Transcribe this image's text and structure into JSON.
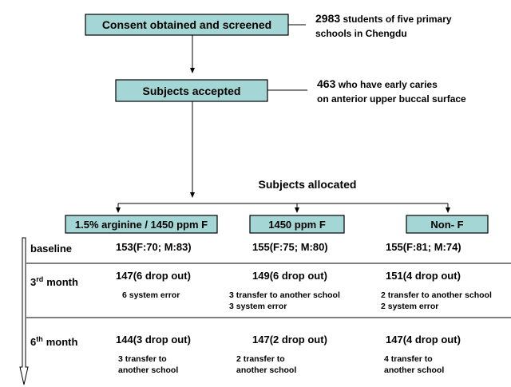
{
  "nodes": [
    {
      "label": "Consent obtained and screened",
      "note": {
        "number": "2983",
        "lines": [
          "students of five primary",
          "schools in Chengdu"
        ]
      }
    },
    {
      "label": "Subjects accepted",
      "note": {
        "number": "463",
        "lines": [
          "who have early caries",
          "on anterior upper buccal surface"
        ]
      }
    }
  ],
  "allocation": {
    "title": "Subjects allocated",
    "groups": [
      "1.5% arginine / 1450 ppm F",
      "1450 ppm F",
      "Non- F"
    ]
  },
  "rows": [
    {
      "label": {
        "text": "baseline"
      },
      "cells": [
        {
          "lines": [
            "153(F:70; M:83)"
          ]
        },
        {
          "lines": [
            "155(F:75; M:80)"
          ]
        },
        {
          "lines": [
            "155(F:81; M:74)"
          ]
        }
      ]
    },
    {
      "label": {
        "num": "3",
        "sup": "rd",
        "text": "month"
      },
      "cells": [
        {
          "lines": [
            "147(6 drop out)",
            "6 system error"
          ]
        },
        {
          "lines": [
            "149(6 drop out)",
            "3 transfer to  another school",
            "3 system error"
          ]
        },
        {
          "lines": [
            "151(4 drop out)",
            "2 transfer to  another school",
            "2 system error"
          ]
        }
      ]
    },
    {
      "label": {
        "num": "6",
        "sup": "th",
        "text": "month"
      },
      "cells": [
        {
          "lines": [
            "144(3 drop out)",
            "3 transfer to",
            "another school"
          ]
        },
        {
          "lines": [
            "147(2 drop out)",
            "2 transfer to",
            "another school"
          ]
        },
        {
          "lines": [
            "147(4 drop out)",
            "4 transfer to",
            "another school"
          ]
        }
      ]
    }
  ]
}
